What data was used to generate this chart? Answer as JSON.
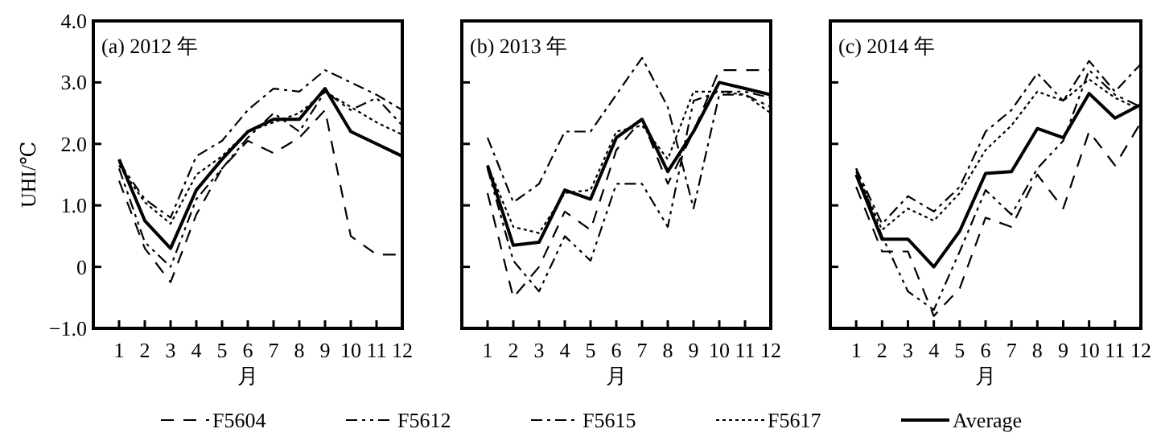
{
  "chart_data": [
    {
      "type": "line",
      "title": "(a) 2012 年",
      "xlabel": "月",
      "ylabel": "UHI/℃",
      "x": [
        1,
        2,
        3,
        4,
        5,
        6,
        7,
        8,
        9,
        10,
        11,
        12
      ],
      "xlim": [
        0,
        12
      ],
      "xticks": [
        1,
        2,
        3,
        4,
        5,
        6,
        7,
        8,
        9,
        10,
        11,
        12
      ],
      "ylim": [
        -1,
        4
      ],
      "yticks": [
        {
          "value": -1,
          "label": "−1.0"
        },
        {
          "value": 0,
          "label": "0"
        },
        {
          "value": 1,
          "label": "1.0"
        },
        {
          "value": 2,
          "label": "2.0"
        },
        {
          "value": 3,
          "label": "3.0"
        },
        {
          "value": 4,
          "label": "4.0"
        }
      ],
      "grid": false,
      "legend": "bottom",
      "marker": "none",
      "series": [
        {
          "name": "F5604",
          "color": "#000000",
          "line_style": "longdash",
          "values": [
            1.4,
            0.3,
            -0.25,
            0.85,
            1.6,
            2.05,
            1.85,
            2.1,
            2.55,
            0.5,
            0.2,
            0.2
          ]
        },
        {
          "name": "F5612",
          "color": "#000000",
          "line_style": "dashdotdot",
          "values": [
            1.6,
            0.4,
            0.0,
            1.1,
            1.6,
            2.1,
            2.5,
            2.2,
            2.85,
            2.55,
            2.75,
            2.3
          ]
        },
        {
          "name": "F5615",
          "color": "#000000",
          "line_style": "dashdot",
          "values": [
            1.7,
            1.1,
            0.8,
            1.8,
            2.05,
            2.55,
            2.9,
            2.85,
            3.2,
            3.0,
            2.8,
            2.55
          ]
        },
        {
          "name": "F5617",
          "color": "#000000",
          "line_style": "dotted",
          "values": [
            1.65,
            1.05,
            0.7,
            1.5,
            1.8,
            2.2,
            2.35,
            2.5,
            2.85,
            2.6,
            2.35,
            2.15
          ]
        },
        {
          "name": "Average",
          "color": "#000000",
          "line_style": "solid",
          "values": [
            1.75,
            0.75,
            0.3,
            1.25,
            1.75,
            2.2,
            2.4,
            2.4,
            2.9,
            2.2,
            2.0,
            1.8
          ]
        }
      ]
    },
    {
      "type": "line",
      "title": "(b) 2013 年",
      "xlabel": "月",
      "x": [
        1,
        2,
        3,
        4,
        5,
        6,
        7,
        8,
        9,
        10,
        11,
        12
      ],
      "xlim": [
        0,
        12
      ],
      "xticks": [
        1,
        2,
        3,
        4,
        5,
        6,
        7,
        8,
        9,
        10,
        11,
        12
      ],
      "ylim": [
        -1,
        4
      ],
      "yticks": [
        {
          "value": -1,
          "label": null
        },
        {
          "value": 0,
          "label": null
        },
        {
          "value": 1,
          "label": null
        },
        {
          "value": 2,
          "label": null
        },
        {
          "value": 3,
          "label": null
        },
        {
          "value": 4,
          "label": null
        }
      ],
      "tick_labels": "x",
      "grid": false,
      "marker": "none",
      "series": [
        {
          "color": "#000000",
          "line_style": "longdash",
          "values": [
            1.2,
            -0.5,
            0.0,
            0.9,
            0.6,
            1.9,
            2.4,
            1.35,
            2.2,
            3.2,
            3.2,
            3.2
          ]
        },
        {
          "color": "#000000",
          "line_style": "dashdotdot",
          "values": [
            1.6,
            0.1,
            -0.4,
            0.5,
            0.1,
            1.35,
            1.35,
            0.65,
            2.7,
            2.85,
            2.85,
            2.75
          ]
        },
        {
          "color": "#000000",
          "line_style": "dashdot",
          "values": [
            2.1,
            1.05,
            1.35,
            2.2,
            2.2,
            2.8,
            3.4,
            2.6,
            0.95,
            2.8,
            2.8,
            2.6
          ]
        },
        {
          "color": "#000000",
          "line_style": "dotted",
          "values": [
            1.65,
            0.65,
            0.55,
            1.2,
            1.25,
            2.2,
            2.3,
            1.75,
            2.85,
            2.85,
            2.8,
            2.5
          ]
        },
        {
          "color": "#000000",
          "line_style": "solid",
          "values": [
            1.65,
            0.35,
            0.4,
            1.25,
            1.1,
            2.1,
            2.4,
            1.55,
            2.2,
            3.0,
            2.9,
            2.8
          ]
        }
      ]
    },
    {
      "type": "line",
      "title": "(c) 2014 年",
      "xlabel": "月",
      "x": [
        1,
        2,
        3,
        4,
        5,
        6,
        7,
        8,
        9,
        10,
        11,
        12
      ],
      "xlim": [
        0,
        12
      ],
      "xticks": [
        1,
        2,
        3,
        4,
        5,
        6,
        7,
        8,
        9,
        10,
        11,
        12
      ],
      "ylim": [
        -1,
        4
      ],
      "yticks": [
        {
          "value": -1,
          "label": null
        },
        {
          "value": 0,
          "label": null
        },
        {
          "value": 1,
          "label": null
        },
        {
          "value": 2,
          "label": null
        },
        {
          "value": 3,
          "label": null
        },
        {
          "value": 4,
          "label": null
        }
      ],
      "tick_labels": "x",
      "grid": false,
      "marker": "none",
      "series": [
        {
          "color": "#000000",
          "line_style": "longdash",
          "values": [
            1.3,
            0.25,
            0.25,
            -0.8,
            -0.35,
            0.8,
            0.65,
            1.5,
            0.95,
            2.2,
            1.65,
            2.35
          ]
        },
        {
          "color": "#000000",
          "line_style": "dashdotdot",
          "values": [
            1.6,
            0.5,
            -0.4,
            -0.7,
            0.25,
            1.25,
            0.85,
            1.6,
            2.05,
            3.2,
            2.8,
            2.6
          ]
        },
        {
          "color": "#000000",
          "line_style": "dashdot",
          "values": [
            1.6,
            0.7,
            1.15,
            0.9,
            1.3,
            2.2,
            2.55,
            3.15,
            2.7,
            3.35,
            2.85,
            3.3
          ]
        },
        {
          "color": "#000000",
          "line_style": "dotted",
          "values": [
            1.55,
            0.6,
            0.95,
            0.75,
            1.2,
            1.9,
            2.3,
            2.85,
            2.7,
            3.05,
            2.75,
            2.55
          ]
        },
        {
          "color": "#000000",
          "line_style": "solid",
          "values": [
            1.5,
            0.45,
            0.45,
            0.0,
            0.58,
            1.52,
            1.55,
            2.25,
            2.1,
            2.82,
            2.42,
            2.64
          ]
        }
      ]
    }
  ]
}
